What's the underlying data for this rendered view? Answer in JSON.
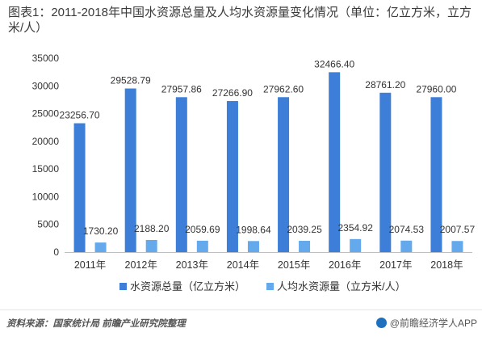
{
  "title": "图表1：2011-2018年中国水资源总量及人均水资源量变化情况（单位：亿立方米，立方米/人）",
  "source": "资料来源：国家统计局 前瞻产业研究院整理",
  "brand": "@前瞻经济学人APP",
  "colors": {
    "series_primary": "#3d7fd8",
    "series_secondary": "#63a9ec",
    "axis": "#bfbfbf"
  },
  "chart_data": {
    "type": "bar",
    "categories": [
      "2011年",
      "2012年",
      "2013年",
      "2014年",
      "2015年",
      "2016年",
      "2017年",
      "2018年"
    ],
    "series": [
      {
        "name": "水资源总量（亿立方米）",
        "values": [
          23256.7,
          29528.79,
          27957.86,
          27266.9,
          27962.6,
          32466.4,
          28761.2,
          27960.0
        ],
        "labels": [
          "23256.70",
          "29528.79",
          "27957.86",
          "27266.90",
          "27962.60",
          "32466.40",
          "28761.20",
          "27960.00"
        ]
      },
      {
        "name": "人均水资源量（立方米/人）",
        "values": [
          1730.2,
          2188.2,
          2059.69,
          1998.64,
          2039.25,
          2354.92,
          2074.53,
          2007.57
        ],
        "labels": [
          "1730.20",
          "2188.20",
          "2059.69",
          "1998.64",
          "2039.25",
          "2354.92",
          "2074.53",
          "2007.57"
        ]
      }
    ],
    "yticks": [
      "0",
      "5000",
      "10000",
      "15000",
      "20000",
      "25000",
      "30000",
      "35000"
    ],
    "ylim": [
      0,
      35000
    ],
    "legend_position": "bottom",
    "grid": false
  }
}
